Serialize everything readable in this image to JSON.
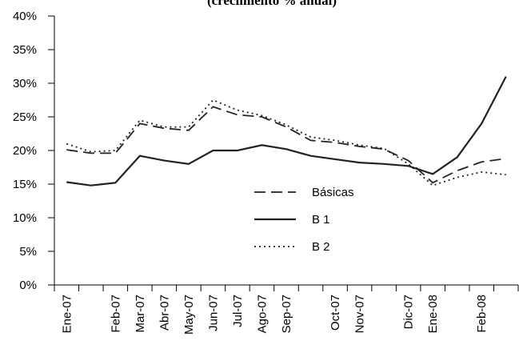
{
  "chart_data": {
    "type": "line",
    "title": "(crecimiento % anual)",
    "categories": [
      "Ene-07",
      null,
      "Feb-07",
      "Mar-07",
      "Abr-07",
      "May-07",
      "Jun-07",
      "Jul-07",
      "Ago-07",
      "Sep-07",
      null,
      "Oct-07",
      "Nov-07",
      null,
      "Dic-07",
      "Ene-08",
      null,
      "Feb-08",
      null
    ],
    "series": [
      {
        "name": "Básicas",
        "color": "#222222",
        "style": "dashed",
        "values": [
          20.1,
          19.6,
          19.6,
          24,
          23.3,
          23,
          26.5,
          25.3,
          25,
          23.5,
          21.5,
          21.2,
          20.6,
          20.2,
          18.5,
          15.2,
          17,
          18.3,
          18.8
        ]
      },
      {
        "name": "B 1",
        "color": "#222222",
        "style": "solid",
        "values": [
          15.3,
          14.8,
          15.2,
          19.2,
          18.5,
          18,
          20,
          20,
          20.8,
          20.2,
          19.2,
          18.7,
          18.2,
          18,
          17.7,
          16.5,
          19,
          24,
          31
        ]
      },
      {
        "name": "B 2",
        "color": "#222222",
        "style": "dotted",
        "values": [
          21,
          19.8,
          20,
          24.5,
          23.5,
          23.5,
          27.5,
          26,
          25.2,
          23.8,
          22,
          21.5,
          20.8,
          20.3,
          18,
          14.8,
          16,
          16.8,
          16.4
        ]
      }
    ],
    "ylim": [
      0,
      40
    ],
    "yticks": [
      {
        "value": 0,
        "label": "0%"
      },
      {
        "value": 5,
        "label": "5%"
      },
      {
        "value": 10,
        "label": "10%"
      },
      {
        "value": 15,
        "label": "15%"
      },
      {
        "value": 20,
        "label": "20%"
      },
      {
        "value": 25,
        "label": "25%"
      },
      {
        "value": 30,
        "label": "30%"
      },
      {
        "value": 35,
        "label": "35%"
      },
      {
        "value": 40,
        "label": "40%"
      }
    ],
    "grid": false
  }
}
